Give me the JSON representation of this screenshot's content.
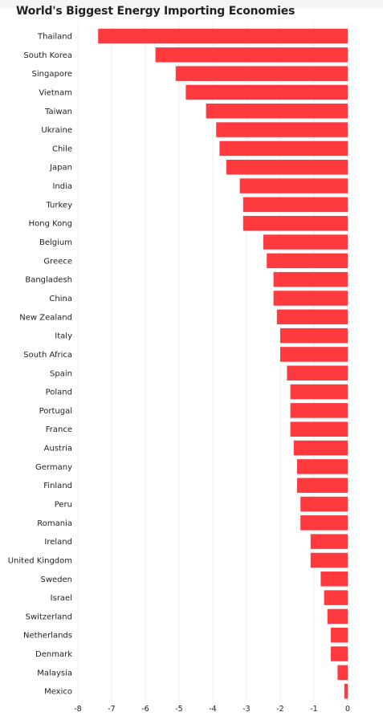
{
  "title": "World's Biggest Energy Importing Economies",
  "colors": {
    "bar": "#ff3a3f",
    "grid": "#eeeeee",
    "text": "#222222"
  },
  "chart_data": {
    "type": "bar",
    "orientation": "horizontal",
    "title": "World's Biggest Energy Importing Economies",
    "xlabel": "",
    "ylabel": "",
    "xlim": [
      -8,
      0
    ],
    "xticks": [
      -8,
      -7,
      -6,
      -5,
      -4,
      -3,
      -2,
      -1,
      0
    ],
    "grid": true,
    "categories": [
      "Thailand",
      "South Korea",
      "Singapore",
      "Vietnam",
      "Taiwan",
      "Ukraine",
      "Chile",
      "Japan",
      "India",
      "Turkey",
      "Hong Kong",
      "Belgium",
      "Greece",
      "Bangladesh",
      "China",
      "New Zealand",
      "Italy",
      "South Africa",
      "Spain",
      "Poland",
      "Portugal",
      "France",
      "Austria",
      "Germany",
      "Finland",
      "Peru",
      "Romania",
      "Ireland",
      "United Kingdom",
      "Sweden",
      "Israel",
      "Switzerland",
      "Netherlands",
      "Denmark",
      "Malaysia",
      "Mexico"
    ],
    "values": [
      -7.4,
      -5.7,
      -5.1,
      -4.8,
      -4.2,
      -3.9,
      -3.8,
      -3.6,
      -3.2,
      -3.1,
      -3.1,
      -2.5,
      -2.4,
      -2.2,
      -2.2,
      -2.1,
      -2.0,
      -2.0,
      -1.8,
      -1.7,
      -1.7,
      -1.7,
      -1.6,
      -1.5,
      -1.5,
      -1.4,
      -1.4,
      -1.1,
      -1.1,
      -0.8,
      -0.7,
      -0.6,
      -0.5,
      -0.5,
      -0.3,
      -0.1
    ]
  }
}
